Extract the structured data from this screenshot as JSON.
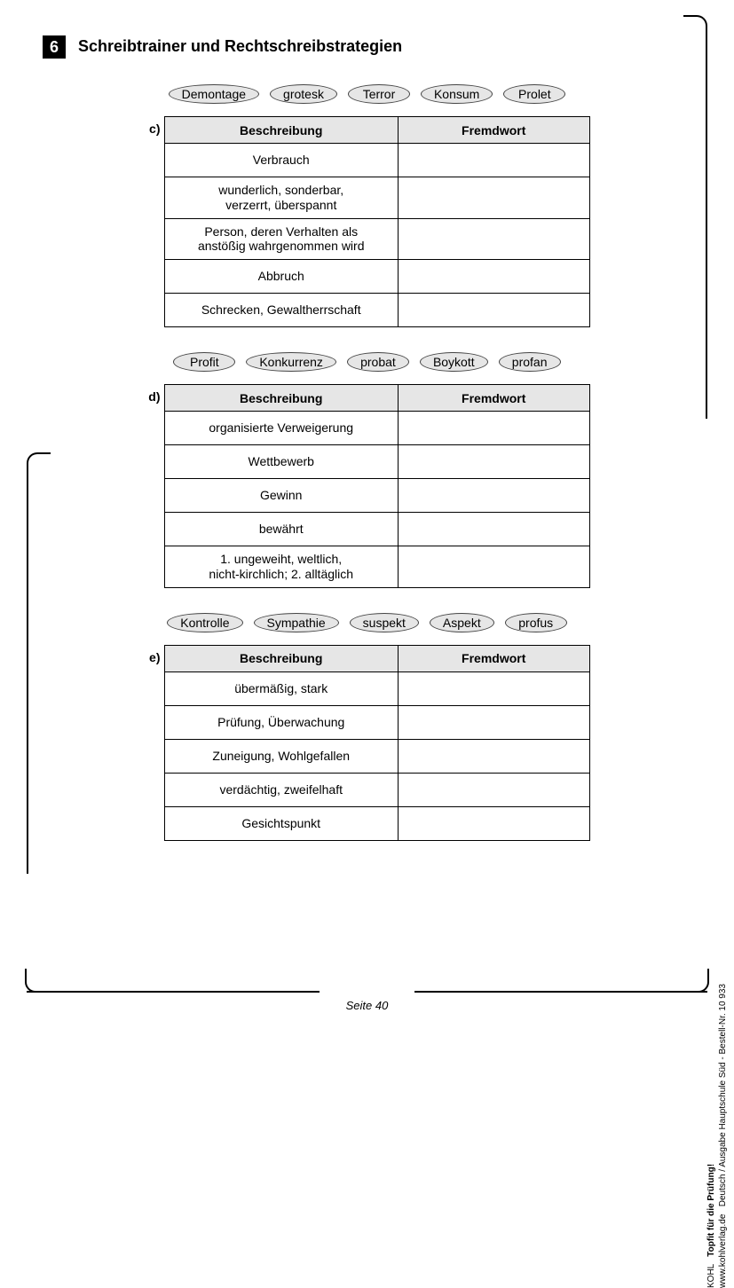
{
  "header": {
    "number": "6",
    "title": "Schreibtrainer und Rechtschreibstrategien"
  },
  "sections": [
    {
      "label": "c)",
      "pills": [
        "Demontage",
        "grotesk",
        "Terror",
        "Konsum",
        "Prolet"
      ],
      "headers": [
        "Beschreibung",
        "Fremdwort"
      ],
      "rows": [
        "Verbrauch",
        "wunderlich, sonderbar,\nverzerrt, überspannt",
        "Person, deren Verhalten als\nanstößig wahrgenommen wird",
        "Abbruch",
        "Schrecken, Gewaltherrschaft"
      ]
    },
    {
      "label": "d)",
      "pills": [
        "Profit",
        "Konkurrenz",
        "probat",
        "Boykott",
        "profan"
      ],
      "headers": [
        "Beschreibung",
        "Fremdwort"
      ],
      "rows": [
        "organisierte Verweigerung",
        "Wettbewerb",
        "Gewinn",
        "bewährt",
        "1. ungeweiht, weltlich,\nnicht-kirchlich;   2. alltäglich"
      ]
    },
    {
      "label": "e)",
      "pills": [
        "Kontrolle",
        "Sympathie",
        "suspekt",
        "Aspekt",
        "profus"
      ],
      "headers": [
        "Beschreibung",
        "Fremdwort"
      ],
      "rows": [
        "übermäßig, stark",
        "Prüfung, Überwachung",
        "Zuneigung, Wohlgefallen",
        "verdächtig, zweifelhaft",
        "Gesichtspunkt"
      ]
    }
  ],
  "footer": {
    "page": "Seite 40",
    "side_bold": "Topfit für die Prüfung!",
    "side_line2": "Deutsch / Ausgabe Hauptschule Süd    -    Bestell-Nr. 10 933",
    "publisher": "KOHL",
    "url": "www.kohlverlag.de"
  }
}
